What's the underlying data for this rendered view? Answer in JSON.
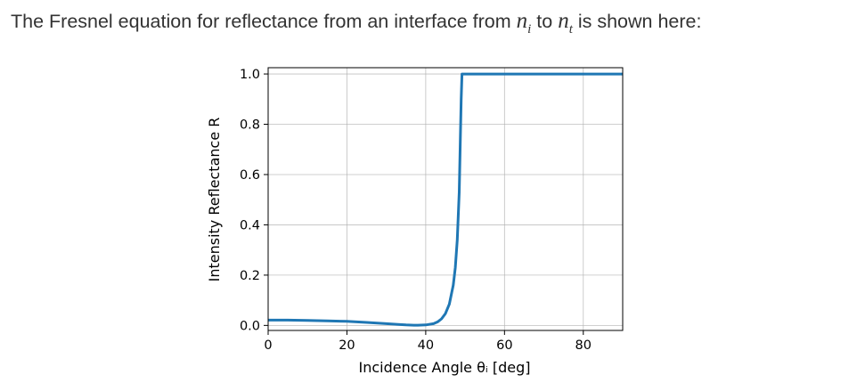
{
  "question": {
    "prefix": "The Fresnel equation for reflectance from an interface from ",
    "n1_base": "n",
    "n1_sub": "i",
    "middle": " to ",
    "n2_base": "n",
    "n2_sub": "t",
    "suffix": " is shown here:"
  },
  "chart_data": {
    "type": "line",
    "title": "",
    "xlabel": "Incidence Angle θᵢ [deg]",
    "ylabel": "Intensity Reflectance R",
    "xlim": [
      0,
      90
    ],
    "ylim": [
      -0.02,
      1.025
    ],
    "xticks": [
      0,
      20,
      40,
      60,
      80
    ],
    "xtick_labels": [
      "0",
      "20",
      "40",
      "60",
      "80"
    ],
    "yticks": [
      0.0,
      0.2,
      0.4,
      0.6,
      0.8,
      1.0
    ],
    "ytick_labels": [
      "0.0",
      "0.2",
      "0.4",
      "0.6",
      "0.8",
      "1.0"
    ],
    "grid": true,
    "series": [
      {
        "color": "#1f77b4",
        "x": [
          0,
          5,
          10,
          15,
          20,
          25,
          30,
          33,
          35,
          37,
          38,
          40,
          42,
          43,
          44,
          45,
          46,
          47,
          47.5,
          48,
          48.5,
          48.8,
          49,
          49.2,
          50,
          60,
          70,
          80,
          90
        ],
        "y": [
          0.021,
          0.021,
          0.02,
          0.018,
          0.016,
          0.012,
          0.007,
          0.004,
          0.002,
          0.001,
          0.001,
          0.002,
          0.007,
          0.014,
          0.026,
          0.047,
          0.085,
          0.16,
          0.23,
          0.34,
          0.53,
          0.75,
          0.9,
          1.0,
          1.0,
          1.0,
          1.0,
          1.0,
          1.0
        ]
      }
    ]
  }
}
